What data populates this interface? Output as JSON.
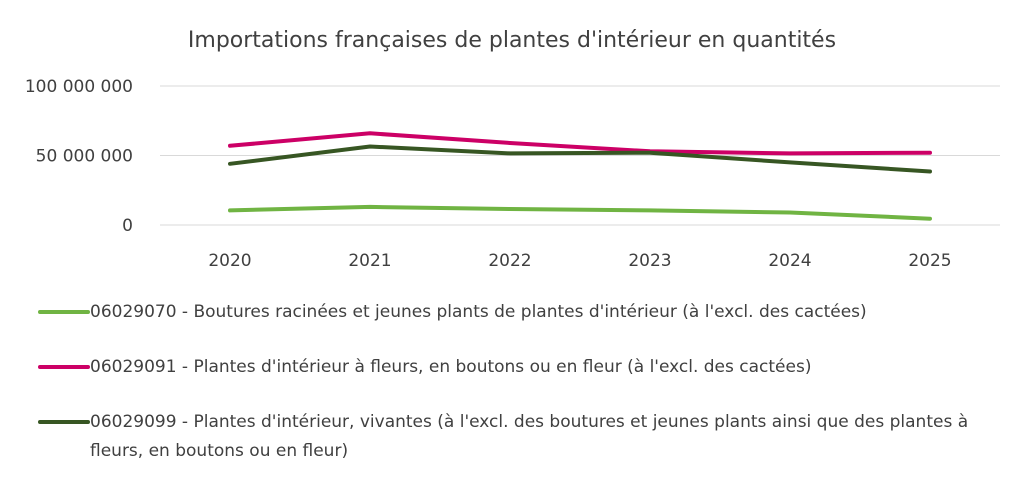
{
  "chart_data": {
    "type": "line",
    "title": "Importations françaises de plantes d'intérieur en quantités",
    "xlabel": "",
    "ylabel": "",
    "categories": [
      "2020",
      "2021",
      "2022",
      "2023",
      "2024",
      "2025"
    ],
    "ylim": [
      0,
      100000000
    ],
    "y_ticks": [
      {
        "value": 0,
        "label": "0"
      },
      {
        "value": 50000000,
        "label": "50 000 000"
      },
      {
        "value": 100000000,
        "label": "100 000 000"
      }
    ],
    "grid": true,
    "legend_position": "bottom",
    "series": [
      {
        "name": "06029070 - Boutures racinées et jeunes plants de plantes d'intérieur (à l'excl. des cactées)",
        "color": "#70b443",
        "values": [
          10500000,
          13000000,
          11500000,
          10500000,
          9000000,
          4500000
        ]
      },
      {
        "name": "06029091 - Plantes d'intérieur à fleurs, en boutons ou en fleur (à l'excl. des cactées)",
        "color": "#cc0066",
        "values": [
          57000000,
          66000000,
          59000000,
          53000000,
          51500000,
          52000000
        ]
      },
      {
        "name": "06029099 - Plantes d'intérieur, vivantes (à l'excl. des boutures et jeunes plants ainsi que des plantes à fleurs, en boutons ou en fleur)",
        "color": "#375623",
        "values": [
          44000000,
          56500000,
          51500000,
          52000000,
          45000000,
          38500000
        ]
      }
    ]
  }
}
